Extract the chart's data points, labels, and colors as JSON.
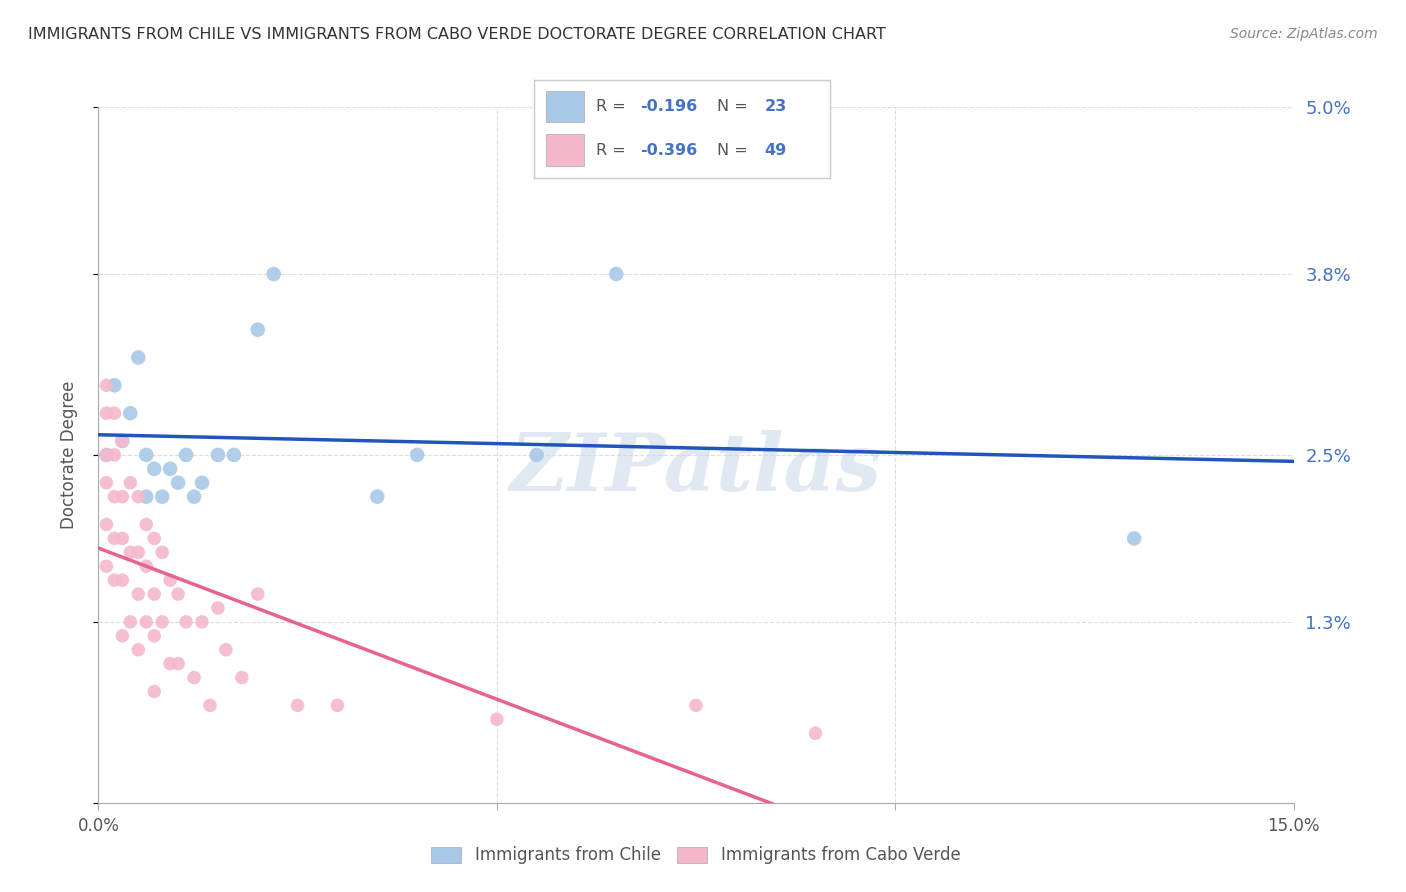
{
  "title": "IMMIGRANTS FROM CHILE VS IMMIGRANTS FROM CABO VERDE DOCTORATE DEGREE CORRELATION CHART",
  "source": "Source: ZipAtlas.com",
  "ylabel": "Doctorate Degree",
  "xlim": [
    0.0,
    0.15
  ],
  "ylim": [
    0.0,
    0.05
  ],
  "ytick_vals": [
    0.0,
    0.013,
    0.025,
    0.038,
    0.05
  ],
  "ytick_labels": [
    "",
    "1.3%",
    "2.5%",
    "3.8%",
    "5.0%"
  ],
  "xtick_vals": [
    0.0,
    0.05,
    0.1,
    0.15
  ],
  "chile_color": "#a8c8e8",
  "cabo_verde_color": "#f5b8cb",
  "chile_line_color": "#2255bb",
  "cabo_verde_line_color": "#e8638a",
  "chile_R": -0.196,
  "chile_N": 23,
  "cabo_verde_R": -0.396,
  "cabo_verde_N": 49,
  "background_color": "#ffffff",
  "grid_color": "#dddddd",
  "title_color": "#333333",
  "right_ytick_color": "#4472c4",
  "legend_text_color": "#4472c4",
  "watermark": "ZIPatlas",
  "watermark_color": "#c8d8e8",
  "chile_x": [
    0.001,
    0.002,
    0.003,
    0.004,
    0.005,
    0.006,
    0.006,
    0.007,
    0.008,
    0.009,
    0.01,
    0.011,
    0.012,
    0.013,
    0.015,
    0.017,
    0.02,
    0.022,
    0.035,
    0.04,
    0.055,
    0.065,
    0.13
  ],
  "chile_y": [
    0.025,
    0.03,
    0.026,
    0.028,
    0.032,
    0.025,
    0.022,
    0.024,
    0.022,
    0.024,
    0.023,
    0.025,
    0.022,
    0.023,
    0.025,
    0.025,
    0.034,
    0.038,
    0.022,
    0.025,
    0.025,
    0.038,
    0.019
  ],
  "cabo_verde_x": [
    0.001,
    0.001,
    0.001,
    0.001,
    0.001,
    0.001,
    0.002,
    0.002,
    0.002,
    0.002,
    0.002,
    0.003,
    0.003,
    0.003,
    0.003,
    0.003,
    0.004,
    0.004,
    0.004,
    0.005,
    0.005,
    0.005,
    0.005,
    0.006,
    0.006,
    0.006,
    0.007,
    0.007,
    0.007,
    0.007,
    0.008,
    0.008,
    0.009,
    0.009,
    0.01,
    0.01,
    0.011,
    0.012,
    0.013,
    0.014,
    0.015,
    0.016,
    0.018,
    0.02,
    0.025,
    0.03,
    0.05,
    0.075,
    0.09
  ],
  "cabo_verde_y": [
    0.03,
    0.028,
    0.025,
    0.023,
    0.02,
    0.017,
    0.028,
    0.025,
    0.022,
    0.019,
    0.016,
    0.026,
    0.022,
    0.019,
    0.016,
    0.012,
    0.023,
    0.018,
    0.013,
    0.022,
    0.018,
    0.015,
    0.011,
    0.02,
    0.017,
    0.013,
    0.019,
    0.015,
    0.012,
    0.008,
    0.018,
    0.013,
    0.016,
    0.01,
    0.015,
    0.01,
    0.013,
    0.009,
    0.013,
    0.007,
    0.014,
    0.011,
    0.009,
    0.015,
    0.007,
    0.007,
    0.006,
    0.007,
    0.005
  ]
}
